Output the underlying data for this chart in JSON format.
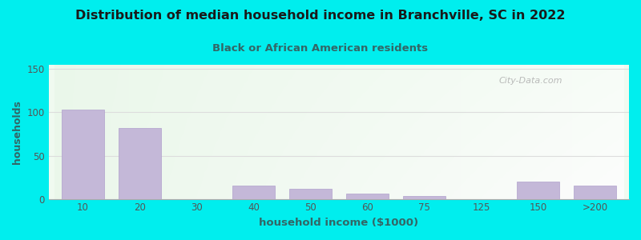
{
  "title": "Distribution of median household income in Branchville, SC in 2022",
  "subtitle": "Black or African American residents",
  "xlabel": "household income ($1000)",
  "ylabel": "households",
  "background_color": "#00EEEE",
  "bar_color": "#c4b8d8",
  "bar_edge_color": "#b0a0cc",
  "title_color": "#1a1a1a",
  "subtitle_color": "#336666",
  "axis_label_color": "#336666",
  "tick_label_color": "#555555",
  "grid_color": "#dddddd",
  "categories": [
    "10",
    "20",
    "30",
    "40",
    "50",
    "60",
    "75",
    "125",
    "150",
    ">200"
  ],
  "values": [
    103,
    82,
    0,
    15,
    12,
    6,
    3,
    0,
    20,
    15
  ],
  "ylim": [
    0,
    155
  ],
  "yticks": [
    0,
    50,
    100,
    150
  ],
  "watermark": "City-Data.com",
  "plot_bg_color_top_right": "#f8ffff",
  "plot_bg_color_bottom_left": "#e8f5e8"
}
